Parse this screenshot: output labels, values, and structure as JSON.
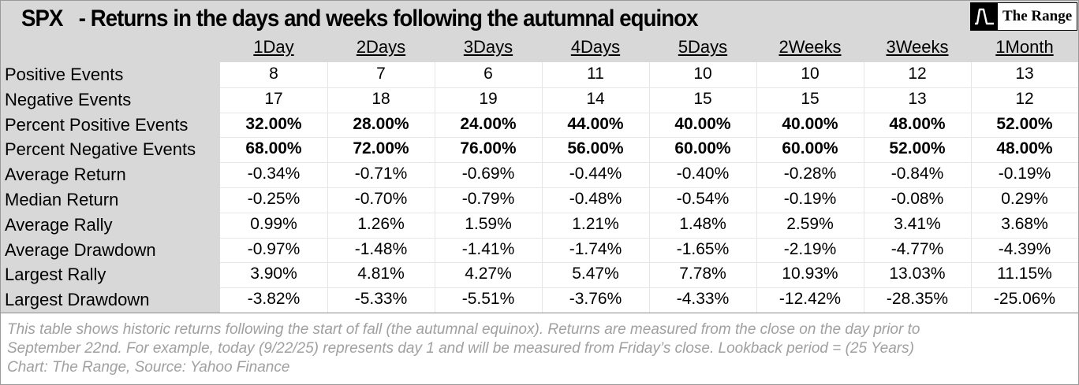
{
  "title": {
    "symbol": "SPX",
    "text": "- Returns in the days and weeks following the autumnal equinox"
  },
  "logo": {
    "text": "The Range",
    "icon": "the-range-logo-icon"
  },
  "chart_data": {
    "type": "table",
    "columns": [
      "1Day",
      "2Days",
      "3Days",
      "4Days",
      "5Days",
      "2Weeks",
      "3Weeks",
      "1Month"
    ],
    "rows": [
      {
        "label": "Positive Events",
        "bold": false,
        "values": [
          "8",
          "7",
          "6",
          "11",
          "10",
          "10",
          "12",
          "13"
        ]
      },
      {
        "label": "Negative Events",
        "bold": false,
        "values": [
          "17",
          "18",
          "19",
          "14",
          "15",
          "15",
          "13",
          "12"
        ]
      },
      {
        "label": "Percent Positive Events",
        "bold": true,
        "values": [
          "32.00%",
          "28.00%",
          "24.00%",
          "44.00%",
          "40.00%",
          "40.00%",
          "48.00%",
          "52.00%"
        ]
      },
      {
        "label": "Percent Negative Events",
        "bold": true,
        "values": [
          "68.00%",
          "72.00%",
          "76.00%",
          "56.00%",
          "60.00%",
          "60.00%",
          "52.00%",
          "48.00%"
        ]
      },
      {
        "label": "Average Return",
        "bold": false,
        "values": [
          "-0.34%",
          "-0.71%",
          "-0.69%",
          "-0.44%",
          "-0.40%",
          "-0.28%",
          "-0.84%",
          "-0.19%"
        ]
      },
      {
        "label": "Median Return",
        "bold": false,
        "values": [
          "-0.25%",
          "-0.70%",
          "-0.79%",
          "-0.48%",
          "-0.54%",
          "-0.19%",
          "-0.08%",
          "0.29%"
        ]
      },
      {
        "label": "Average Rally",
        "bold": false,
        "values": [
          "0.99%",
          "1.26%",
          "1.59%",
          "1.21%",
          "1.48%",
          "2.59%",
          "3.41%",
          "3.68%"
        ]
      },
      {
        "label": "Average Drawdown",
        "bold": false,
        "values": [
          "-0.97%",
          "-1.48%",
          "-1.41%",
          "-1.74%",
          "-1.65%",
          "-2.19%",
          "-4.77%",
          "-4.39%"
        ]
      },
      {
        "label": "Largest Rally",
        "bold": false,
        "values": [
          "3.90%",
          "4.81%",
          "4.27%",
          "5.47%",
          "7.78%",
          "10.93%",
          "13.03%",
          "11.15%"
        ]
      },
      {
        "label": "Largest Drawdown",
        "bold": false,
        "values": [
          "-3.82%",
          "-5.33%",
          "-5.51%",
          "-3.76%",
          "-4.33%",
          "-12.42%",
          "-28.35%",
          "-25.06%"
        ]
      }
    ]
  },
  "footer": {
    "lines": [
      "This table shows historic returns following the start of fall (the autumnal equinox). Returns are measured from the close on the day prior to",
      "September 22nd. For example, today (9/22/25) represents day 1 and will be measured from Friday’s close. Lookback period =  (25 Years)",
      "Chart: The Range, Source: Yahoo Finance"
    ]
  },
  "colors": {
    "header_bg": "#d8d8d8",
    "footer_text": "#a0a0a0"
  }
}
